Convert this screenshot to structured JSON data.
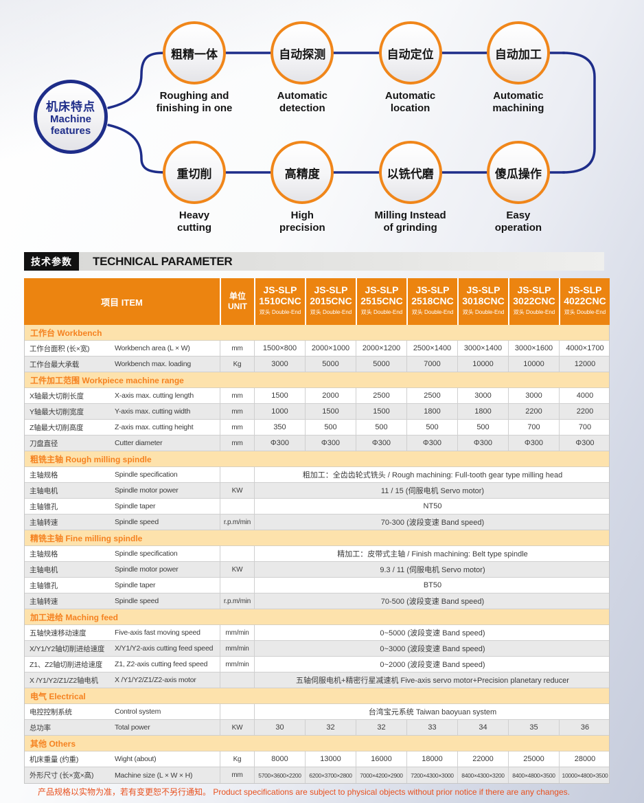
{
  "colors": {
    "accent_orange": "#ec8410",
    "circle_orange": "#f0861a",
    "navy_blue": "#1e2d89",
    "section_band_bg": "#fde2ac",
    "section_band_text": "#f58220",
    "row_alt_gray": "#e9e9e9",
    "note_text": "#e8501e",
    "header_text": "#ffffff"
  },
  "features": {
    "hub": {
      "cn": "机床特点",
      "en": "Machine\nfeatures"
    },
    "items": [
      {
        "cn": "粗精一体",
        "en": "Roughing and\nfinishing in one"
      },
      {
        "cn": "自动探测",
        "en": "Automatic\ndetection"
      },
      {
        "cn": "自动定位",
        "en": "Automatic\nlocation"
      },
      {
        "cn": "自动加工",
        "en": "Automatic\nmachining"
      },
      {
        "cn": "重切削",
        "en": "Heavy\ncutting"
      },
      {
        "cn": "高精度",
        "en": "High\nprecision"
      },
      {
        "cn": "以铣代磨",
        "en": "Milling Instead\nof grinding"
      },
      {
        "cn": "傻瓜操作",
        "en": "Easy\noperation"
      }
    ]
  },
  "heading": {
    "cn": "技术参数",
    "en": "TECHNICAL PARAMETER"
  },
  "table": {
    "item_header": "项目 ITEM",
    "unit_header": "单位\nUNIT",
    "models": [
      {
        "series": "JS-SLP",
        "model": "1510CNC",
        "sub": "双头 Double-End"
      },
      {
        "series": "JS-SLP",
        "model": "2015CNC",
        "sub": "双头 Double-End"
      },
      {
        "series": "JS-SLP",
        "model": "2515CNC",
        "sub": "双头 Double-End"
      },
      {
        "series": "JS-SLP",
        "model": "2518CNC",
        "sub": "双头 Double-End"
      },
      {
        "series": "JS-SLP",
        "model": "3018CNC",
        "sub": "双头 Double-End"
      },
      {
        "series": "JS-SLP",
        "model": "3022CNC",
        "sub": "双头 Double-End"
      },
      {
        "series": "JS-SLP",
        "model": "4022CNC",
        "sub": "双头 Double-End"
      }
    ],
    "sections": [
      {
        "title": "工作台 Workbench",
        "rows": [
          {
            "cn": "工作台面积 (长×宽)",
            "en": "Workbench area (L × W)",
            "unit": "mm",
            "values": [
              "1500×800",
              "2000×1000",
              "2000×1200",
              "2500×1400",
              "3000×1400",
              "3000×1600",
              "4000×1700"
            ]
          },
          {
            "cn": "工作台最大承载",
            "en": "Workbench max. loading",
            "unit": "Kg",
            "values": [
              "3000",
              "5000",
              "5000",
              "7000",
              "10000",
              "10000",
              "12000"
            ]
          }
        ]
      },
      {
        "title": "工件加工范围 Workpiece machine range",
        "rows": [
          {
            "cn": "X轴最大切削长度",
            "en": "X-axis max. cutting length",
            "unit": "mm",
            "values": [
              "1500",
              "2000",
              "2500",
              "2500",
              "3000",
              "3000",
              "4000"
            ]
          },
          {
            "cn": "Y轴最大切削宽度",
            "en": "Y-axis max. cutting width",
            "unit": "mm",
            "values": [
              "1000",
              "1500",
              "1500",
              "1800",
              "1800",
              "2200",
              "2200"
            ]
          },
          {
            "cn": "Z轴最大切削高度",
            "en": "Z-axis max. cutting height",
            "unit": "mm",
            "values": [
              "350",
              "500",
              "500",
              "500",
              "500",
              "700",
              "700"
            ]
          },
          {
            "cn": "刀盘直径",
            "en": "Cutter diameter",
            "unit": "mm",
            "values": [
              "Φ300",
              "Φ300",
              "Φ300",
              "Φ300",
              "Φ300",
              "Φ300",
              "Φ300"
            ]
          }
        ]
      },
      {
        "title": "粗铣主轴 Rough milling spindle",
        "rows": [
          {
            "cn": "主轴规格",
            "en": "Spindle specification",
            "unit": "",
            "merged": "粗加工：全齿齿轮式铣头 / Rough machining: Full-tooth gear type milling head"
          },
          {
            "cn": "主轴电机",
            "en": "Spindle motor power",
            "unit": "KW",
            "merged": "11 / 15 (伺服电机  Servo motor)"
          },
          {
            "cn": "主轴锥孔",
            "en": "Spindle taper",
            "unit": "",
            "merged": "NT50"
          },
          {
            "cn": "主轴转速",
            "en": "Spindle speed",
            "unit": "r.p.m/min",
            "merged": "70-300 (波段变速  Band speed)"
          }
        ]
      },
      {
        "title": "精铣主轴 Fine milling spindle",
        "rows": [
          {
            "cn": "主轴规格",
            "en": "Spindle specification",
            "unit": "",
            "merged": "精加工：皮带式主轴 /  Finish machining: Belt type spindle"
          },
          {
            "cn": "主轴电机",
            "en": "Spindle motor power",
            "unit": "KW",
            "merged": "9.3 / 11 (伺服电机  Servo motor)"
          },
          {
            "cn": "主轴锥孔",
            "en": "Spindle taper",
            "unit": "",
            "merged": "BT50"
          },
          {
            "cn": "主轴转速",
            "en": "Spindle speed",
            "unit": "r.p.m/min",
            "merged": "70-500 (波段变速  Band speed)"
          }
        ]
      },
      {
        "title": "加工进给 Maching feed",
        "rows": [
          {
            "cn": "五轴快速移动速度",
            "en": "Five-axis fast moving speed",
            "unit": "mm/min",
            "merged": "0~5000 (波段变速 Band speed)"
          },
          {
            "cn": "X/Y1/Y2轴切削进给速度",
            "en": "X/Y1/Y2-axis cutting feed speed",
            "unit": "mm/min",
            "merged": "0~3000 (波段变速 Band speed)"
          },
          {
            "cn": "Z1、Z2轴切削进给速度",
            "en": "Z1, Z2-axis cutting feed speed",
            "unit": "mm/min",
            "merged": "0~2000 (波段变速 Band speed)"
          },
          {
            "cn": "X /Y1/Y2/Z1/Z2轴电机",
            "en": "X /Y1/Y2/Z1/Z2-axis motor",
            "unit": "",
            "merged": "五轴伺服电机+精密行星减速机    Five-axis servo motor+Precision planetary reducer"
          }
        ]
      },
      {
        "title": "电气 Electrical",
        "rows": [
          {
            "cn": "电控控制系统",
            "en": "Control system",
            "unit": "",
            "merged": "台湾宝元系统  Taiwan baoyuan system"
          },
          {
            "cn": "总功率",
            "en": "Total power",
            "unit": "KW",
            "values": [
              "30",
              "32",
              "32",
              "33",
              "34",
              "35",
              "36"
            ]
          }
        ]
      },
      {
        "title": "其他 Others",
        "rows": [
          {
            "cn": "机床重量 (约重)",
            "en": "Wight (about)",
            "unit": "Kg",
            "values": [
              "8000",
              "13000",
              "16000",
              "18000",
              "22000",
              "25000",
              "28000"
            ]
          },
          {
            "cn": "外形尺寸 (长×宽×高)",
            "en": "Machine size  (L × W × H)",
            "unit": "mm",
            "values": [
              "5700×3600×2200",
              "6200×3700×2800",
              "7000×4200×2900",
              "7200×4300×3000",
              "8400×4300×3200",
              "8400×4800×3500",
              "10000×4800×3500"
            ]
          }
        ]
      }
    ]
  },
  "footer_note": "产品规格以实物为准，若有变更恕不另行通知。 Product specifications are subject to physical objects without prior notice if there are any changes."
}
